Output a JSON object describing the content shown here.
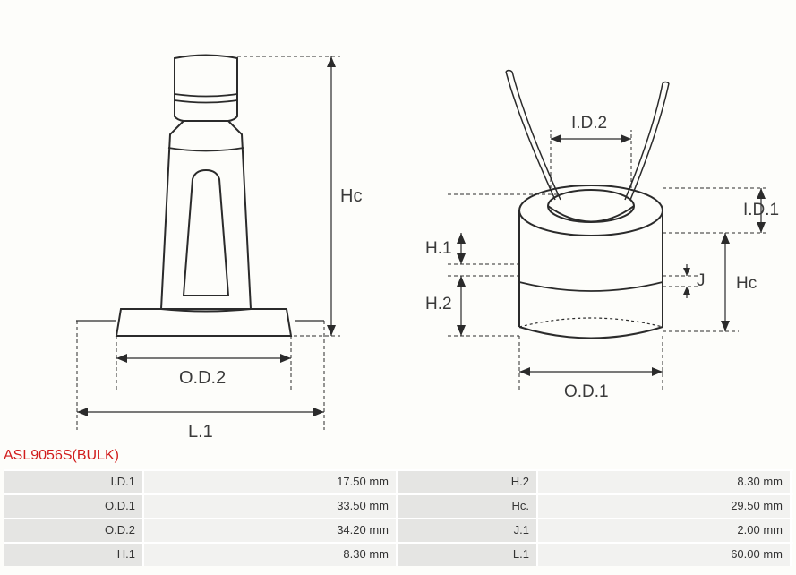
{
  "part_number": "ASL9056S(BULK)",
  "labels": {
    "left": {
      "Hc": "Hc",
      "OD2": "O.D.2",
      "L1": "L.1"
    },
    "right": {
      "ID2": "I.D.2",
      "ID1": "I.D.1",
      "H1": "H.1",
      "H2": "H.2",
      "J": "J",
      "Hc": "Hc",
      "OD1": "O.D.1"
    }
  },
  "specs": [
    {
      "l1": "I.D.1",
      "v1": "17.50 mm",
      "l2": "H.2",
      "v2": "8.30 mm"
    },
    {
      "l1": "O.D.1",
      "v1": "33.50 mm",
      "l2": "Hc.",
      "v2": "29.50 mm"
    },
    {
      "l1": "O.D.2",
      "v1": "34.20 mm",
      "l2": "J.1",
      "v2": "2.00 mm"
    },
    {
      "l1": "H.1",
      "v1": "8.30 mm",
      "l2": "L.1",
      "v2": "60.00 mm"
    }
  ],
  "colors": {
    "stroke": "#2b2b2b",
    "dash": "#2b2b2b",
    "label": "#3a3a3a",
    "partno": "#d11b1b",
    "cell_label_bg": "#e5e5e3",
    "cell_value_bg": "#f2f2f0"
  }
}
